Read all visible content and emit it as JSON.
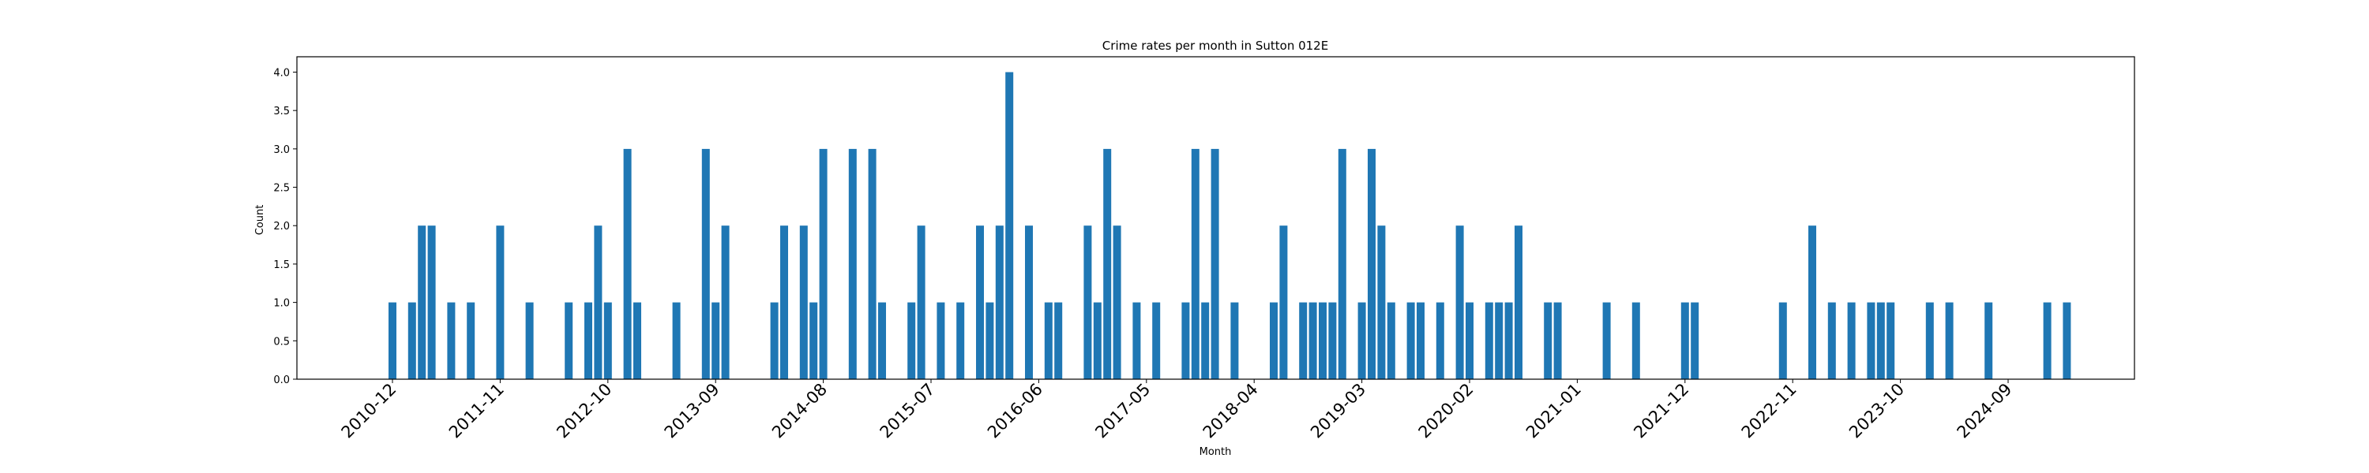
{
  "chart_data": {
    "type": "bar",
    "title": "Crime rates per month in Sutton 012E",
    "xlabel": "Month",
    "ylabel": "Count",
    "ylim": [
      0,
      4.2
    ],
    "yticks": [
      "0.0",
      "0.5",
      "1.0",
      "1.5",
      "2.0",
      "2.5",
      "3.0",
      "3.5",
      "4.0"
    ],
    "xticks": [
      "2010-12",
      "2011-11",
      "2012-10",
      "2013-09",
      "2014-08",
      "2015-07",
      "2016-06",
      "2017-05",
      "2018-04",
      "2019-03",
      "2020-02",
      "2021-01",
      "2021-12",
      "2022-11",
      "2023-10",
      "2024-09"
    ],
    "bar_color": "#1f77b4",
    "grid": false,
    "categories": [
      "2010-12",
      "2011-02",
      "2011-03",
      "2011-04",
      "2011-06",
      "2011-08",
      "2011-11",
      "2012-02",
      "2012-06",
      "2012-08",
      "2012-09",
      "2012-10",
      "2012-12",
      "2013-01",
      "2013-05",
      "2013-08",
      "2013-09",
      "2013-10",
      "2014-03",
      "2014-04",
      "2014-06",
      "2014-07",
      "2014-08",
      "2014-11",
      "2015-01",
      "2015-02",
      "2015-05",
      "2015-06",
      "2015-08",
      "2015-10",
      "2015-12",
      "2016-01",
      "2016-02",
      "2016-03",
      "2016-05",
      "2016-07",
      "2016-08",
      "2016-11",
      "2016-12",
      "2017-01",
      "2017-02",
      "2017-04",
      "2017-06",
      "2017-09",
      "2017-10",
      "2017-11",
      "2017-12",
      "2018-02",
      "2018-06",
      "2018-07",
      "2018-09",
      "2018-10",
      "2018-11",
      "2018-12",
      "2019-01",
      "2019-03",
      "2019-04",
      "2019-05",
      "2019-06",
      "2019-08",
      "2019-09",
      "2019-11",
      "2020-01",
      "2020-02",
      "2020-04",
      "2020-05",
      "2020-06",
      "2020-07",
      "2020-10",
      "2020-11",
      "2021-04",
      "2021-07",
      "2021-12",
      "2022-01",
      "2022-10",
      "2023-01",
      "2023-03",
      "2023-05",
      "2023-07",
      "2023-08",
      "2023-09",
      "2024-01",
      "2024-03",
      "2024-07",
      "2025-01",
      "2025-03"
    ],
    "values": [
      1,
      1,
      2,
      2,
      1,
      1,
      2,
      1,
      1,
      1,
      2,
      1,
      3,
      1,
      1,
      3,
      1,
      2,
      1,
      2,
      2,
      1,
      3,
      3,
      3,
      1,
      1,
      2,
      1,
      1,
      2,
      1,
      2,
      4,
      2,
      1,
      1,
      2,
      1,
      3,
      2,
      1,
      1,
      1,
      3,
      1,
      3,
      1,
      1,
      2,
      1,
      1,
      1,
      1,
      3,
      1,
      3,
      2,
      1,
      1,
      1,
      1,
      2,
      1,
      1,
      1,
      1,
      2,
      1,
      1,
      1,
      1,
      1,
      1,
      1,
      2,
      1,
      1,
      1,
      1,
      1,
      1,
      1,
      1,
      1,
      1
    ]
  }
}
